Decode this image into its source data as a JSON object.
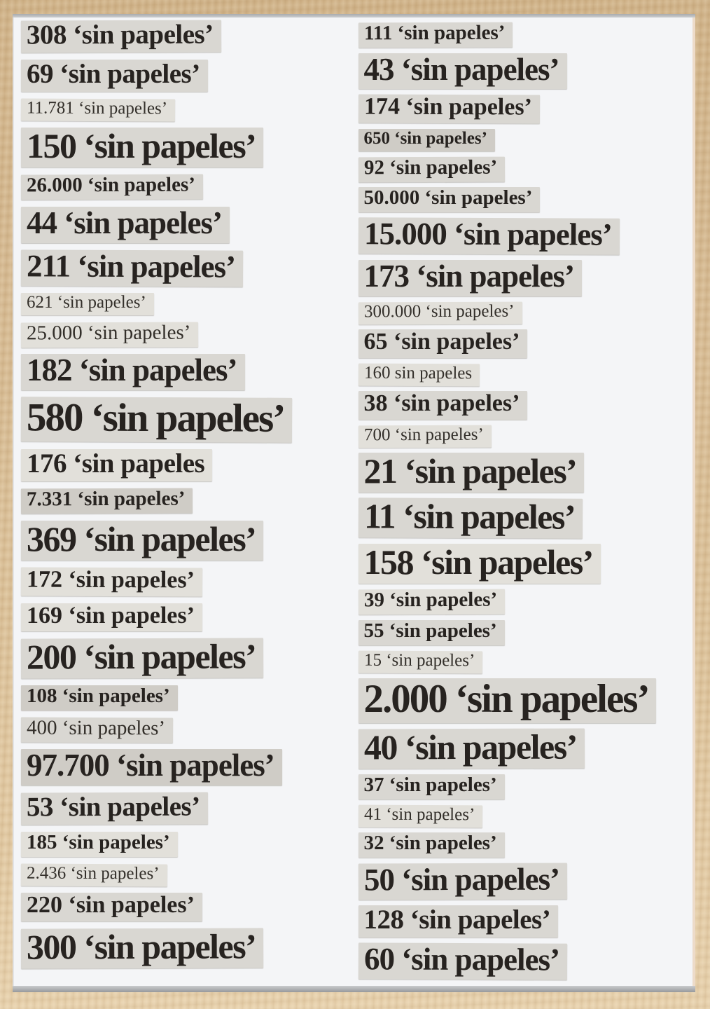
{
  "artwork": {
    "palette": {
      "frame_wood": "#d6ba92",
      "board": "#f4f5f7",
      "edge_line": "#a9abae",
      "clipping_mid": "#d9d7d2",
      "clipping_light": "#e2e0da",
      "clipping_dark": "#cfccc6",
      "ink": "#272320"
    },
    "repeated_phrase": "sin papeles",
    "columns": [
      {
        "name": "left",
        "items": [
          {
            "text": "308 ‘sin papeles’",
            "size": "s5",
            "weight": "bold",
            "tone": "mid"
          },
          {
            "text": "69 ‘sin papeles’",
            "size": "s5",
            "weight": "bold",
            "tone": "mid"
          },
          {
            "text": "11.781 ‘sin papeles’",
            "size": "s2",
            "weight": "regular",
            "tone": "light"
          },
          {
            "text": "150 ‘sin papeles’",
            "size": "s7",
            "weight": "bold",
            "tone": "mid"
          },
          {
            "text": "26.000 ‘sin papeles’",
            "size": "s3",
            "weight": "bold",
            "tone": "mid"
          },
          {
            "text": "44 ‘sin papeles’",
            "size": "s6",
            "weight": "bold",
            "tone": "mid"
          },
          {
            "text": "211 ‘sin papeles’",
            "size": "s6",
            "weight": "bold",
            "tone": "mid"
          },
          {
            "text": "621 ‘sin papeles’",
            "size": "s2",
            "weight": "regular",
            "tone": "light"
          },
          {
            "text": "25.000 ‘sin papeles’",
            "size": "s3",
            "weight": "regular",
            "tone": "light"
          },
          {
            "text": "182 ‘sin papeles’",
            "size": "s6",
            "weight": "bold",
            "tone": "mid"
          },
          {
            "text": "580 ‘sin papeles’",
            "size": "s8",
            "weight": "bold",
            "tone": "mid"
          },
          {
            "text": "176 ‘sin papeles",
            "size": "s5",
            "weight": "bold",
            "tone": "light"
          },
          {
            "text": "7.331 ‘sin papeles’",
            "size": "s3",
            "weight": "bold",
            "tone": "dark"
          },
          {
            "text": "369 ‘sin papeles’",
            "size": "s7",
            "weight": "bold",
            "tone": "mid"
          },
          {
            "text": "172 ‘sin papeles’",
            "size": "s4",
            "weight": "bold",
            "tone": "light"
          },
          {
            "text": "169 ‘sin papeles’",
            "size": "s4",
            "weight": "bold",
            "tone": "light"
          },
          {
            "text": "200 ‘sin papeles’",
            "size": "s7",
            "weight": "bold",
            "tone": "mid"
          },
          {
            "text": "108 ‘sin papeles’",
            "size": "s3",
            "weight": "bold",
            "tone": "dark"
          },
          {
            "text": "400 ‘sin papeles’",
            "size": "s3",
            "weight": "regular",
            "tone": "mid"
          },
          {
            "text": "97.700 ‘sin papeles’",
            "size": "s6",
            "weight": "bold",
            "tone": "dark"
          },
          {
            "text": "53 ‘sin papeles’",
            "size": "s5",
            "weight": "bold",
            "tone": "mid"
          },
          {
            "text": "185 ‘sin papeles’",
            "size": "s3",
            "weight": "bold",
            "tone": "light"
          },
          {
            "text": "2.436 ‘sin papeles’",
            "size": "s2",
            "weight": "regular",
            "tone": "light"
          },
          {
            "text": "220 ‘sin papeles’",
            "size": "s4",
            "weight": "bold",
            "tone": "mid"
          },
          {
            "text": "300 ‘sin papeles’",
            "size": "s7",
            "weight": "bold",
            "tone": "mid"
          }
        ]
      },
      {
        "name": "right",
        "items": [
          {
            "text": "111 ‘sin papeles’",
            "size": "s3",
            "weight": "bold",
            "tone": "mid"
          },
          {
            "text": "43 ‘sin papeles’",
            "size": "s6",
            "weight": "bold",
            "tone": "mid"
          },
          {
            "text": "174 ‘sin papeles’",
            "size": "s4",
            "weight": "bold",
            "tone": "mid"
          },
          {
            "text": "650 ‘sin papeles’",
            "size": "s2",
            "weight": "bold",
            "tone": "dark"
          },
          {
            "text": "92 ‘sin papeles’",
            "size": "s3",
            "weight": "bold",
            "tone": "mid"
          },
          {
            "text": "50.000 ‘sin papeles’",
            "size": "s3",
            "weight": "bold",
            "tone": "mid"
          },
          {
            "text": "15.000 ‘sin papeles’",
            "size": "s6",
            "weight": "bold",
            "tone": "mid"
          },
          {
            "text": "173 ‘sin papeles’",
            "size": "s6",
            "weight": "bold",
            "tone": "mid"
          },
          {
            "text": "300.000 ‘sin papeles’",
            "size": "s2",
            "weight": "regular",
            "tone": "light"
          },
          {
            "text": "65 ‘sin papeles’",
            "size": "s4",
            "weight": "bold",
            "tone": "mid"
          },
          {
            "text": "160 sin papeles",
            "size": "s2",
            "weight": "regular",
            "tone": "light"
          },
          {
            "text": "38 ‘sin papeles’",
            "size": "s4",
            "weight": "bold",
            "tone": "mid"
          },
          {
            "text": "700 ‘sin papeles’",
            "size": "s2",
            "weight": "regular",
            "tone": "light"
          },
          {
            "text": "21 ‘sin papeles’",
            "size": "s7",
            "weight": "bold",
            "tone": "mid"
          },
          {
            "text": "11 ‘sin papeles’",
            "size": "s7",
            "weight": "bold",
            "tone": "mid"
          },
          {
            "text": "158 ‘sin papeles’",
            "size": "s7",
            "weight": "bold",
            "tone": "light"
          },
          {
            "text": "39 ‘sin papeles’",
            "size": "s3",
            "weight": "bold",
            "tone": "light"
          },
          {
            "text": "55 ‘sin papeles’",
            "size": "s3",
            "weight": "bold",
            "tone": "mid"
          },
          {
            "text": "15 ‘sin papeles’",
            "size": "s2",
            "weight": "regular",
            "tone": "light"
          },
          {
            "text": "2.000 ‘sin papeles’",
            "size": "s8",
            "weight": "bold",
            "tone": "mid"
          },
          {
            "text": "40 ‘sin papeles’",
            "size": "s7",
            "weight": "bold",
            "tone": "mid"
          },
          {
            "text": "37 ‘sin papeles’",
            "size": "s3",
            "weight": "bold",
            "tone": "mid"
          },
          {
            "text": "41 ‘sin papeles’",
            "size": "s2",
            "weight": "regular",
            "tone": "light"
          },
          {
            "text": "32 ‘sin papeles’",
            "size": "s3",
            "weight": "bold",
            "tone": "mid"
          },
          {
            "text": "50 ‘sin papeles’",
            "size": "s6",
            "weight": "bold",
            "tone": "mid"
          },
          {
            "text": "128 ‘sin papeles’",
            "size": "s5",
            "weight": "bold",
            "tone": "mid"
          },
          {
            "text": "60 ‘sin papeles’",
            "size": "s6",
            "weight": "bold",
            "tone": "mid"
          }
        ]
      }
    ]
  }
}
